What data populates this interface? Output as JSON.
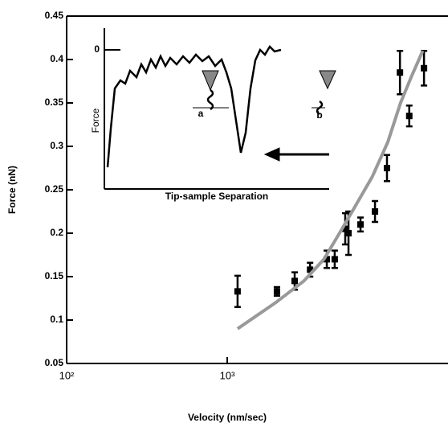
{
  "chart_data": {
    "type": "scatter",
    "xlabel": "Velocity (nm/sec)",
    "ylabel": "Force (nN)",
    "xscale": "log",
    "xlim": [
      100,
      23700
    ],
    "ylim": [
      0.05,
      0.45
    ],
    "xticks": [
      {
        "value": 100,
        "label": "10²"
      },
      {
        "value": 1000,
        "label": "10³"
      }
    ],
    "yticks": [
      0.05,
      0.1,
      0.15,
      0.2,
      0.25,
      0.3,
      0.35,
      0.4,
      0.45
    ],
    "series": [
      {
        "kind": "points",
        "color": "#000000",
        "x": [
          1160,
          2040,
          2630,
          3280,
          4170,
          4670,
          5430,
          5690,
          6760,
          8320,
          9880,
          11900,
          13600,
          16800
        ],
        "values": [
          0.133,
          0.133,
          0.145,
          0.158,
          0.17,
          0.17,
          0.205,
          0.2,
          0.21,
          0.225,
          0.275,
          0.385,
          0.335,
          0.39
        ],
        "errors": [
          0.018,
          0.005,
          0.01,
          0.008,
          0.01,
          0.01,
          0.018,
          0.025,
          0.008,
          0.012,
          0.015,
          0.025,
          0.012,
          0.02
        ]
      },
      {
        "kind": "fit",
        "color": "#999999",
        "x": [
          1160,
          2000,
          3000,
          4000,
          5000,
          6000,
          8000,
          10000,
          12000,
          14000,
          16500
        ],
        "values": [
          0.09,
          0.12,
          0.145,
          0.17,
          0.2,
          0.225,
          0.265,
          0.305,
          0.35,
          0.38,
          0.41
        ]
      }
    ],
    "inset": {
      "ylabel": "Force",
      "zero_label": "0",
      "xlabel": "Tip-sample Separation",
      "label_a": "a",
      "label_b": "b"
    }
  }
}
